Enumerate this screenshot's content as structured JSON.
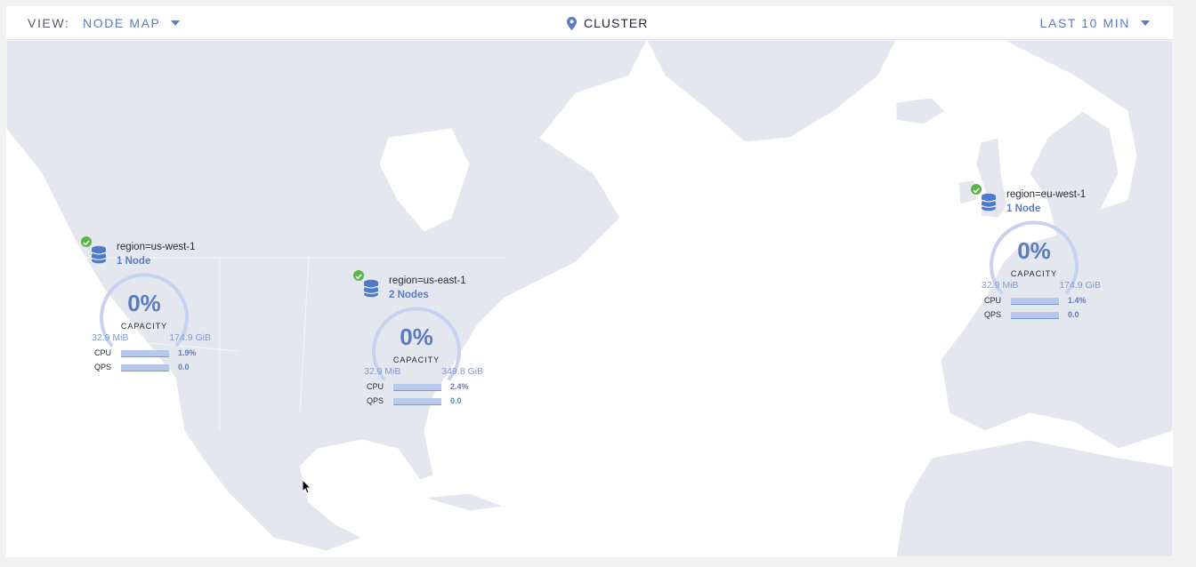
{
  "header": {
    "view_label": "VIEW:",
    "view_value": "NODE MAP",
    "cluster": "CLUSTER",
    "time_range": "LAST 10 MIN"
  },
  "colors": {
    "accent": "#5b7cc2",
    "land": "#e4e7ee",
    "healthy": "#5cb54a"
  },
  "regions": [
    {
      "name": "region=us-west-1",
      "nodes": "1 Node",
      "capacity": "0%",
      "capacity_label": "CAPACITY",
      "used": "32.9 MiB",
      "total": "174.9 GiB",
      "cpu_label": "CPU",
      "cpu": "1.9%",
      "qps_label": "QPS",
      "qps": "0.0",
      "status": "healthy"
    },
    {
      "name": "region=us-east-1",
      "nodes": "2 Nodes",
      "capacity": "0%",
      "capacity_label": "CAPACITY",
      "used": "32.9 MiB",
      "total": "349.8 GiB",
      "cpu_label": "CPU",
      "cpu": "2.4%",
      "qps_label": "QPS",
      "qps": "0.0",
      "status": "healthy"
    },
    {
      "name": "region=eu-west-1",
      "nodes": "1 Node",
      "capacity": "0%",
      "capacity_label": "CAPACITY",
      "used": "32.9 MiB",
      "total": "174.9 GiB",
      "cpu_label": "CPU",
      "cpu": "1.4%",
      "qps_label": "QPS",
      "qps": "0.0",
      "status": "healthy"
    }
  ]
}
